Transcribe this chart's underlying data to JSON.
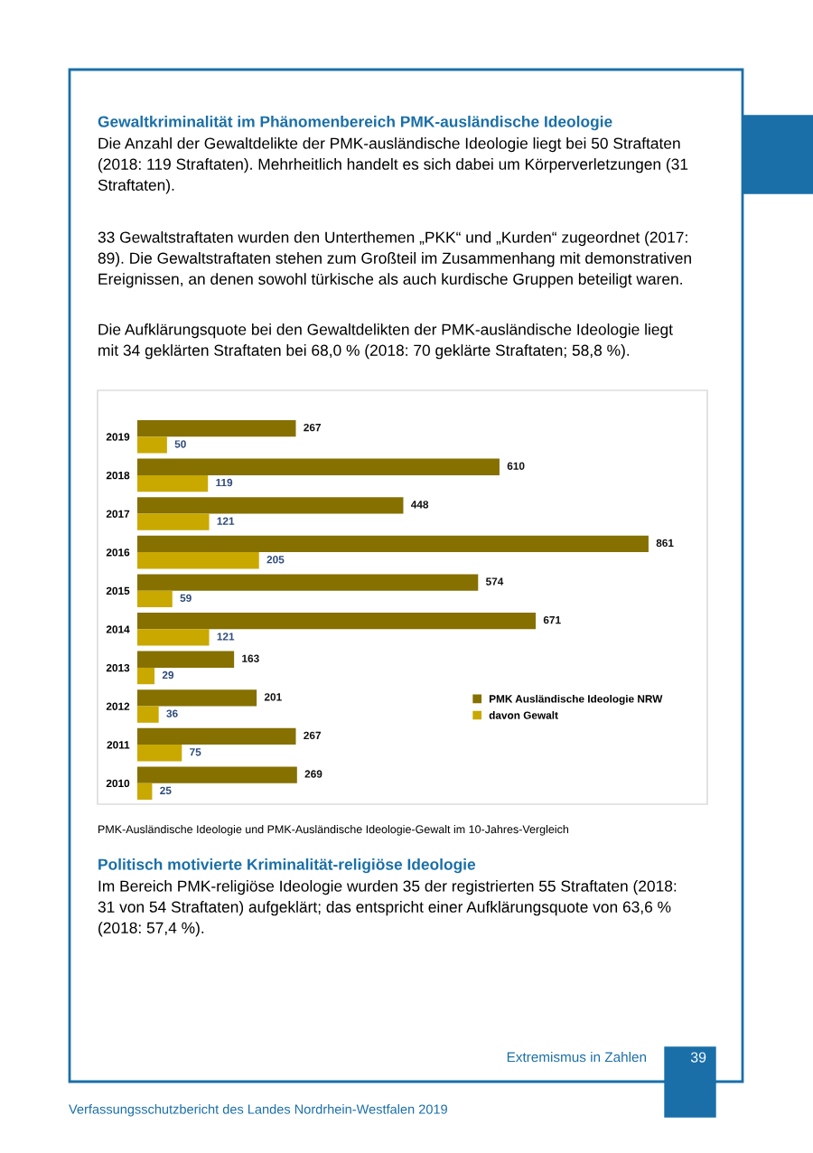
{
  "chart_data": {
    "type": "bar",
    "orientation": "horizontal",
    "title": "Gewaltkriminalität im Phänomenbereich PMK-ausländische Ideologie",
    "categories": [
      "2019",
      "2018",
      "2017",
      "2016",
      "2015",
      "2014",
      "2013",
      "2012",
      "2011",
      "2010"
    ],
    "series": [
      {
        "name": "PMK Ausländische Ideologie NRW",
        "color": "#857000",
        "values": [
          267,
          610,
          448,
          861,
          574,
          671,
          163,
          201,
          267,
          269
        ]
      },
      {
        "name": "davon Gewalt",
        "color": "#c9a800",
        "values": [
          50,
          119,
          121,
          205,
          59,
          121,
          29,
          36,
          75,
          25
        ]
      }
    ],
    "data_labels": true,
    "legend": "bottom right",
    "grid": false,
    "annotations": [
      "Die Anzahl der Gewaltdelikte der PMK-ausländische Ideologie liegt bei 50 Straftaten\n(2018: 119 Straftaten). Mehrheitlich handelt es sich dabei um Körperverletzungen (31\nStraftaten).",
      "33 Gewaltstraftaten wurden den Unterthemen „PKK“ und „Kurden“ zugeordnet (2017:\n89). Die Gewaltstraftaten stehen zum Großteil im Zusammenhang mit demonstrativen\nEreignissen, an denen sowohl türkische als auch kurdische Gruppen beteiligt waren.",
      "Die Aufklärungsquote bei den Gewaltdelikten der PMK-ausländische Ideologie liegt\nmit 34 geklärten Straftaten bei 68,0 % (2018: 70 geklärte Straftaten; 58,8 %).",
      "PMK-Ausländische Ideologie und PMK-Ausländische Ideologie-Gewalt im 10-Jahres-Vergleich",
      "Politisch motivierte Kriminalität-religiöse Ideologie",
      "Im Bereich PMK-religiöse Ideologie wurden 35 der registrierten 55 Straftaten (2018:\n31 von 54 Straftaten) aufgeklärt; das entspricht einer Aufklärungsquote von 63,6 %\n(2018: 57,4 %).",
      "Extremismus in Zahlen",
      "39",
      "Verfassungsschutzbericht des Landes Nordrhein-Westfalen 2019"
    ]
  }
}
